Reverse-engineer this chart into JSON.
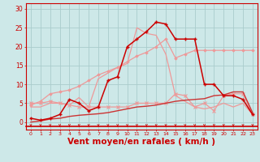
{
  "x": [
    0,
    1,
    2,
    3,
    4,
    5,
    6,
    7,
    8,
    9,
    10,
    11,
    12,
    13,
    14,
    15,
    16,
    17,
    18,
    19,
    20,
    21,
    22,
    23
  ],
  "dark_red_gusts": [
    1,
    0.5,
    1,
    2,
    6,
    5,
    3,
    4,
    11,
    12,
    20,
    22,
    24,
    26.5,
    26,
    22,
    22,
    22,
    10,
    10,
    7,
    7,
    6,
    2
  ],
  "dark_red_mean": [
    0,
    0.3,
    0.8,
    1.0,
    1.5,
    1.8,
    2.0,
    2.2,
    2.5,
    3.0,
    3.5,
    4.0,
    4.2,
    4.5,
    5.0,
    5.5,
    5.8,
    6.0,
    6.2,
    7.0,
    7.2,
    8.0,
    8.0,
    2.5
  ],
  "light_pink_upper": [
    4.5,
    5.5,
    7.5,
    8.0,
    8.5,
    9.5,
    11.0,
    12.5,
    13.5,
    14.5,
    16.0,
    17.5,
    18.5,
    20.0,
    22.0,
    17.0,
    18.0,
    19.0,
    19.0,
    19.0,
    19.0,
    19.0,
    19.0,
    19.0
  ],
  "light_pink_lower": [
    5.0,
    5.0,
    5.5,
    5.0,
    4.5,
    4.0,
    4.0,
    4.0,
    4.0,
    4.0,
    4.0,
    5.0,
    5.0,
    5.0,
    5.0,
    7.5,
    7.0,
    4.0,
    5.0,
    3.0,
    7.0,
    7.5,
    7.5,
    2.0
  ],
  "light_pink_spiky": [
    4.0,
    4.0,
    5.0,
    5.0,
    4.5,
    6.5,
    4.0,
    11.5,
    13.0,
    14.5,
    15.5,
    25.0,
    23.5,
    23.0,
    18.0,
    7.0,
    5.5,
    4.0,
    3.5,
    4.0,
    5.0,
    4.0,
    5.0,
    2.0
  ],
  "bg_color": "#cde8e8",
  "grid_color": "#aacccc",
  "dark_red": "#cc0000",
  "medium_red": "#cc3333",
  "light_pink": "#ee9999",
  "xlabel": "Vent moyen/en rafales ( km/h )",
  "yticks": [
    0,
    5,
    10,
    15,
    20,
    25,
    30
  ],
  "xlim": [
    -0.5,
    23.5
  ],
  "ylim": [
    -2.0,
    31.5
  ]
}
